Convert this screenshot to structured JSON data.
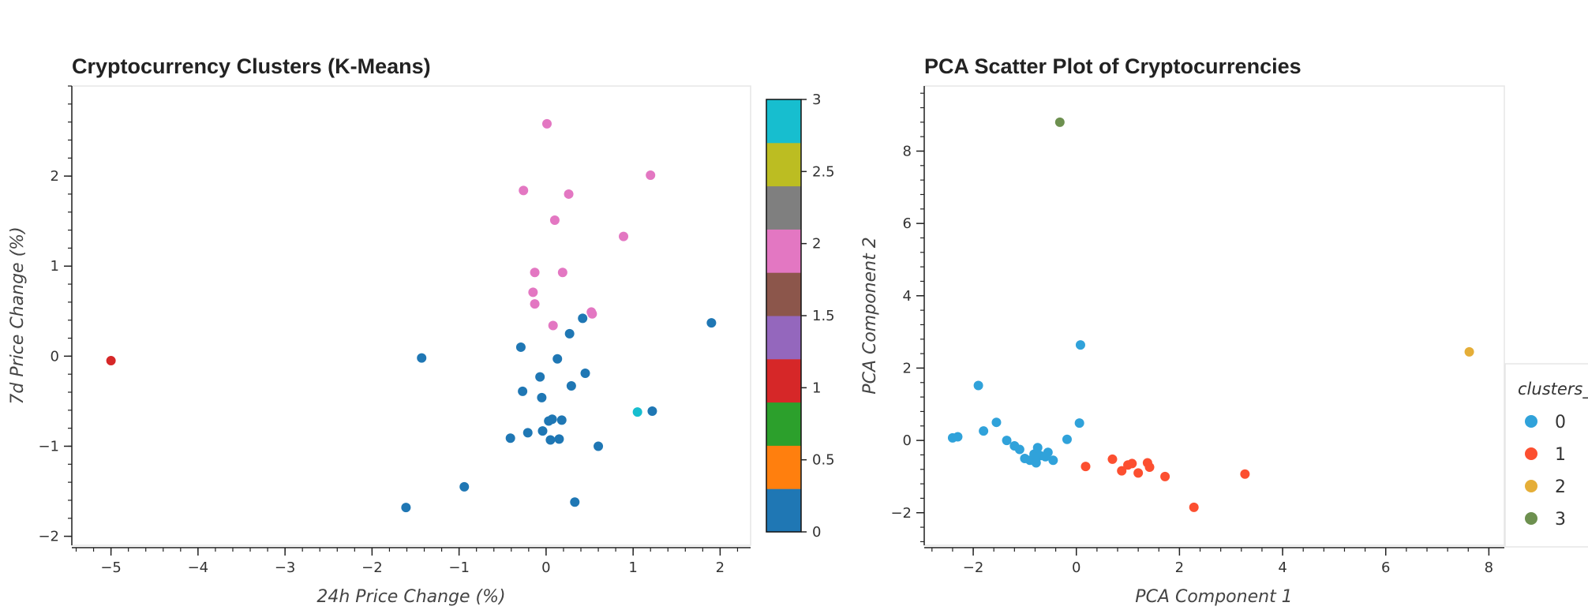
{
  "chart_data": [
    {
      "type": "scatter",
      "title": "Cryptocurrency Clusters (K-Means)",
      "xlabel": "24h Price Change (%)",
      "ylabel": "7d Price Change (%)",
      "xlim": [
        -5.45,
        2.35
      ],
      "ylim": [
        -2.1,
        3.0
      ],
      "xticks": [
        -5,
        -4,
        -3,
        -2,
        -1,
        0,
        1,
        2
      ],
      "yticks": [
        -2,
        -1,
        0,
        1,
        2
      ],
      "grid": false,
      "colorbar": {
        "range": [
          0,
          3
        ],
        "ticks": [
          "0",
          "0.5",
          "1",
          "1.5",
          "2",
          "2.5",
          "3"
        ],
        "colors": [
          "#1f77b4",
          "#ff7f0e",
          "#2ca02c",
          "#d62728",
          "#9467bd",
          "#8c564b",
          "#e377c2",
          "#7f7f7f",
          "#bcbd22",
          "#17becf"
        ]
      },
      "series": [
        {
          "cluster": 0,
          "color": "#1f77b4",
          "points": [
            [
              -1.43,
              -0.02
            ],
            [
              -0.29,
              0.1
            ],
            [
              0.13,
              -0.03
            ],
            [
              0.27,
              0.25
            ],
            [
              0.42,
              0.42
            ],
            [
              -0.07,
              -0.23
            ],
            [
              0.45,
              -0.19
            ],
            [
              0.29,
              -0.33
            ],
            [
              -0.27,
              -0.39
            ],
            [
              -0.05,
              -0.46
            ],
            [
              0.03,
              -0.72
            ],
            [
              0.07,
              -0.7
            ],
            [
              0.18,
              -0.71
            ],
            [
              -0.04,
              -0.83
            ],
            [
              -0.21,
              -0.85
            ],
            [
              -0.41,
              -0.91
            ],
            [
              0.05,
              -0.93
            ],
            [
              0.15,
              -0.92
            ],
            [
              0.6,
              -1.0
            ],
            [
              1.22,
              -0.61
            ],
            [
              1.9,
              0.37
            ],
            [
              -0.94,
              -1.45
            ],
            [
              -1.61,
              -1.68
            ],
            [
              0.33,
              -1.62
            ]
          ]
        },
        {
          "cluster": 1,
          "color": "#d62728",
          "points": [
            [
              -5.0,
              -0.05
            ]
          ]
        },
        {
          "cluster": 2,
          "color": "#e377c2",
          "points": [
            [
              0.01,
              2.58
            ],
            [
              -0.26,
              1.84
            ],
            [
              0.26,
              1.8
            ],
            [
              1.2,
              2.01
            ],
            [
              0.1,
              1.51
            ],
            [
              0.89,
              1.33
            ],
            [
              -0.13,
              0.93
            ],
            [
              0.19,
              0.93
            ],
            [
              -0.15,
              0.71
            ],
            [
              -0.13,
              0.58
            ],
            [
              0.52,
              0.49
            ],
            [
              0.53,
              0.47
            ],
            [
              0.08,
              0.34
            ]
          ]
        },
        {
          "cluster": 3,
          "color": "#17becf",
          "points": [
            [
              1.05,
              -0.62
            ]
          ]
        }
      ]
    },
    {
      "type": "scatter",
      "title": "PCA Scatter Plot of Cryptocurrencies",
      "xlabel": "PCA Component 1",
      "ylabel": "PCA Component 2",
      "xlim": [
        -2.95,
        8.3
      ],
      "ylim": [
        -2.9,
        9.8
      ],
      "xticks": [
        -2,
        0,
        2,
        4,
        6,
        8
      ],
      "yticks": [
        -2,
        0,
        2,
        4,
        6,
        8
      ],
      "grid": false,
      "legend": {
        "title": "clusters_",
        "position": "right"
      },
      "series": [
        {
          "name": "0",
          "color": "#30a2da",
          "points": [
            [
              -1.9,
              1.52
            ],
            [
              0.08,
              2.64
            ],
            [
              0.06,
              0.48
            ],
            [
              -1.55,
              0.5
            ],
            [
              -1.8,
              0.26
            ],
            [
              -2.3,
              0.1
            ],
            [
              -2.4,
              0.07
            ],
            [
              -1.35,
              0.0
            ],
            [
              -1.2,
              -0.15
            ],
            [
              -1.1,
              -0.25
            ],
            [
              -1.0,
              -0.5
            ],
            [
              -0.9,
              -0.55
            ],
            [
              -0.82,
              -0.38
            ],
            [
              -0.75,
              -0.2
            ],
            [
              -0.7,
              -0.42
            ],
            [
              -0.78,
              -0.62
            ],
            [
              -0.6,
              -0.45
            ],
            [
              -0.55,
              -0.33
            ],
            [
              -0.45,
              -0.55
            ],
            [
              -0.18,
              0.03
            ]
          ]
        },
        {
          "name": "1",
          "color": "#fc4f30",
          "points": [
            [
              0.18,
              -0.72
            ],
            [
              0.7,
              -0.52
            ],
            [
              0.88,
              -0.84
            ],
            [
              1.0,
              -0.68
            ],
            [
              1.08,
              -0.64
            ],
            [
              1.2,
              -0.9
            ],
            [
              1.38,
              -0.62
            ],
            [
              1.42,
              -0.74
            ],
            [
              1.72,
              -1.0
            ],
            [
              2.28,
              -1.85
            ],
            [
              3.27,
              -0.93
            ]
          ]
        },
        {
          "name": "2",
          "color": "#e5ae38",
          "points": [
            [
              7.62,
              2.45
            ]
          ]
        },
        {
          "name": "3",
          "color": "#6d904f",
          "points": [
            [
              -0.32,
              8.8
            ]
          ]
        }
      ]
    }
  ]
}
